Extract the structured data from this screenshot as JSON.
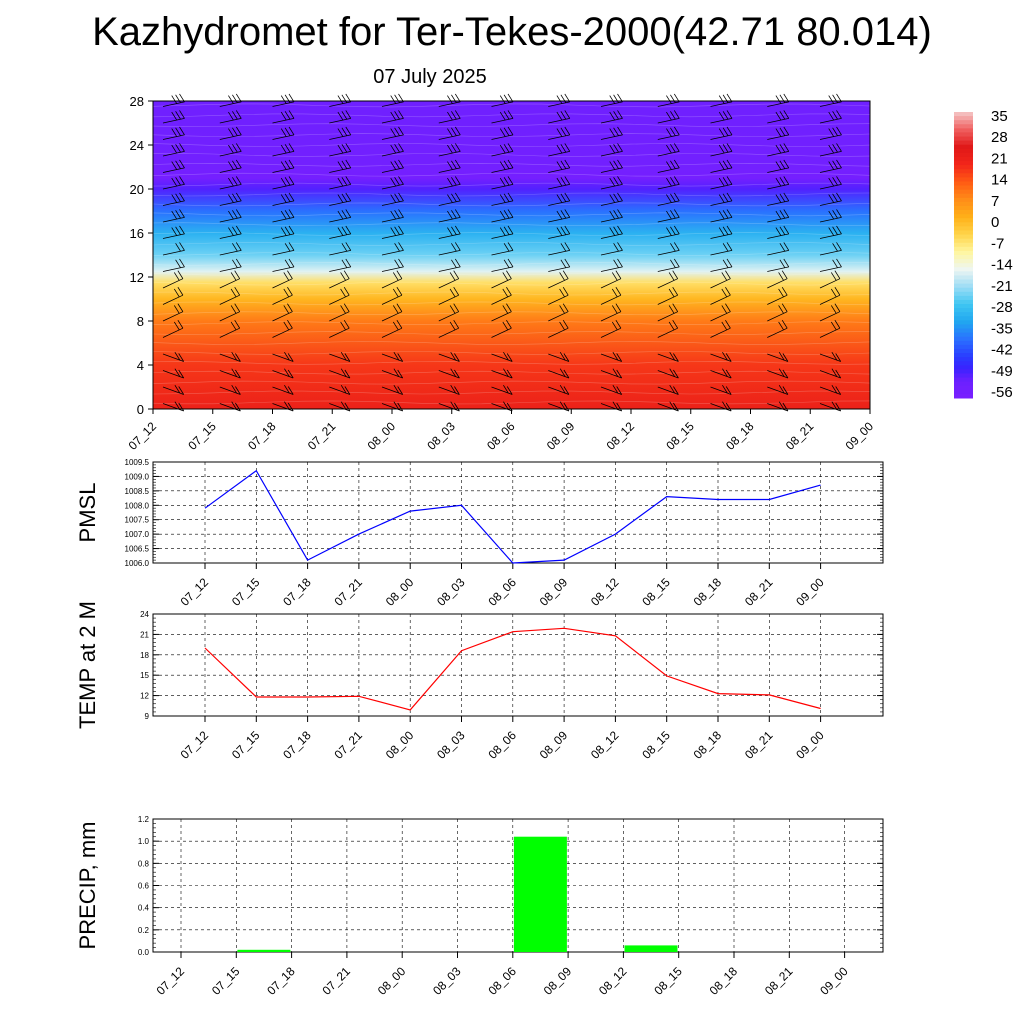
{
  "title": "Kazhydromet for Ter-Tekes-2000(42.71 80.014)",
  "subtitle": "07 July 2025",
  "chart_data": [
    {
      "type": "heatmap",
      "x_ticks": [
        "07_12",
        "07_15",
        "07_18",
        "07_21",
        "08_00",
        "08_03",
        "08_06",
        "08_09",
        "08_12",
        "08_15",
        "08_18",
        "08_21",
        "09_00"
      ],
      "y_ticks": [
        0,
        4,
        8,
        12,
        16,
        20,
        24,
        28
      ],
      "ylim": [
        0,
        28
      ],
      "colorbar_labels": [
        "35",
        "28",
        "21",
        "14",
        "7",
        "0",
        "-7",
        "-14",
        "-21",
        "-28",
        "-35",
        "-42",
        "-49",
        "-56"
      ],
      "colorbar_range": [
        -60,
        38
      ],
      "profile_levels": [
        0,
        4,
        8,
        10,
        11.5,
        12.5,
        14,
        16,
        18,
        20,
        21,
        22.5,
        28
      ],
      "profile_temps": [
        22,
        18,
        10,
        1,
        -6,
        -17,
        -25,
        -32,
        -40,
        -52,
        -58,
        -57,
        -56
      ],
      "wind_barbs": true
    },
    {
      "type": "line",
      "ylabel": "PMSL",
      "x": [
        "07_12",
        "07_15",
        "07_18",
        "07_21",
        "08_00",
        "08_03",
        "08_06",
        "08_09",
        "08_12",
        "08_15",
        "08_18",
        "08_21",
        "09_00"
      ],
      "values": [
        1007.9,
        1009.2,
        1006.1,
        1007.0,
        1007.8,
        1008.0,
        1006.0,
        1006.1,
        1007.0,
        1008.3,
        1008.2,
        1008.2,
        1008.7
      ],
      "ylim": [
        1006.0,
        1009.5
      ],
      "y_ticks": [
        "1006.0",
        "1006.5",
        "1007.0",
        "1007.5",
        "1008.0",
        "1008.5",
        "1009.0",
        "1009.5"
      ],
      "color": "#0000ff",
      "grid": true
    },
    {
      "type": "line",
      "ylabel": "TEMP at 2 M",
      "x": [
        "07_12",
        "07_15",
        "07_18",
        "07_21",
        "08_00",
        "08_03",
        "08_06",
        "08_09",
        "08_12",
        "08_15",
        "08_18",
        "08_21",
        "09_00"
      ],
      "values": [
        19.0,
        11.8,
        11.8,
        11.9,
        9.9,
        18.6,
        21.4,
        21.9,
        20.8,
        14.9,
        12.3,
        12.1,
        10.1
      ],
      "ylim": [
        9,
        24
      ],
      "y_ticks": [
        "9",
        "12",
        "15",
        "18",
        "21",
        "24"
      ],
      "color": "#ff0000",
      "grid": true
    },
    {
      "type": "bar",
      "ylabel": "PRECIP, mm",
      "categories": [
        "07_12",
        "07_15",
        "07_18",
        "07_21",
        "08_00",
        "08_03",
        "08_06",
        "08_09",
        "08_12",
        "08_15",
        "08_18",
        "08_21",
        "09_00"
      ],
      "values": [
        0,
        0.02,
        0,
        0,
        0,
        0,
        1.04,
        0,
        0.06,
        0,
        0,
        0,
        0
      ],
      "ylim": [
        0,
        1.2
      ],
      "y_ticks": [
        "0.0",
        "0.2",
        "0.4",
        "0.6",
        "0.8",
        "1.0",
        "1.2"
      ],
      "color": "#00ff00",
      "grid": true
    }
  ]
}
